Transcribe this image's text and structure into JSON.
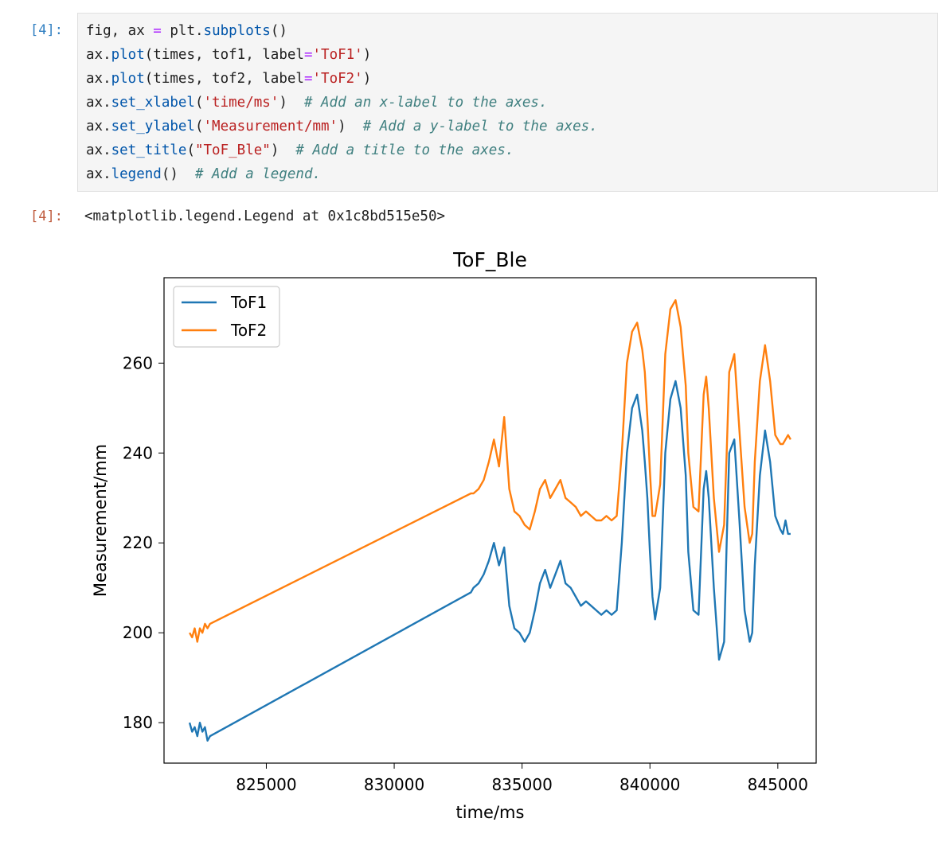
{
  "cells": {
    "input_prompt": "[4]:",
    "output_prompt": "[4]:",
    "code_lines": [
      {
        "parts": [
          [
            "kw",
            "fig, ax "
          ],
          [
            "op",
            "="
          ],
          [
            "kw",
            " plt."
          ],
          [
            "fn",
            "subplots"
          ],
          [
            "kw",
            "()"
          ]
        ]
      },
      {
        "parts": [
          [
            "kw",
            "ax."
          ],
          [
            "fn",
            "plot"
          ],
          [
            "kw",
            "(times, tof1, label"
          ],
          [
            "op",
            "="
          ],
          [
            "str",
            "'ToF1'"
          ],
          [
            "kw",
            ")"
          ]
        ]
      },
      {
        "parts": [
          [
            "kw",
            "ax."
          ],
          [
            "fn",
            "plot"
          ],
          [
            "kw",
            "(times, tof2, label"
          ],
          [
            "op",
            "="
          ],
          [
            "str",
            "'ToF2'"
          ],
          [
            "kw",
            ")"
          ]
        ]
      },
      {
        "parts": [
          [
            "kw",
            "ax."
          ],
          [
            "fn",
            "set_xlabel"
          ],
          [
            "kw",
            "("
          ],
          [
            "str",
            "'time/ms'"
          ],
          [
            "kw",
            ")  "
          ],
          [
            "cmt",
            "# Add an x-label to the axes."
          ]
        ]
      },
      {
        "parts": [
          [
            "kw",
            "ax."
          ],
          [
            "fn",
            "set_ylabel"
          ],
          [
            "kw",
            "("
          ],
          [
            "str",
            "'Measurement/mm'"
          ],
          [
            "kw",
            ")  "
          ],
          [
            "cmt",
            "# Add a y-label to the axes."
          ]
        ]
      },
      {
        "parts": [
          [
            "kw",
            "ax."
          ],
          [
            "fn",
            "set_title"
          ],
          [
            "kw",
            "("
          ],
          [
            "str",
            "\"ToF_Ble\""
          ],
          [
            "kw",
            ")  "
          ],
          [
            "cmt",
            "# Add a title to the axes."
          ]
        ]
      },
      {
        "parts": [
          [
            "kw",
            "ax."
          ],
          [
            "fn",
            "legend"
          ],
          [
            "kw",
            "()  "
          ],
          [
            "cmt",
            "# Add a legend."
          ]
        ]
      }
    ],
    "output_text": "<matplotlib.legend.Legend at 0x1c8bd515e50>"
  },
  "colors": {
    "tof1": "#1f77b4",
    "tof2": "#ff7f0e"
  },
  "chart_data": {
    "type": "line",
    "title": "ToF_Ble",
    "xlabel": "time/ms",
    "ylabel": "Measurement/mm",
    "xlim": [
      821000,
      846500
    ],
    "ylim": [
      171,
      279
    ],
    "xticks": [
      825000,
      830000,
      835000,
      840000,
      845000
    ],
    "yticks": [
      180,
      200,
      220,
      240,
      260
    ],
    "legend_position": "upper left",
    "series": [
      {
        "name": "ToF1",
        "x": [
          822000,
          822100,
          822200,
          822300,
          822400,
          822500,
          822600,
          822700,
          822800,
          833000,
          833100,
          833300,
          833500,
          833700,
          833900,
          834100,
          834300,
          834500,
          834700,
          834900,
          835100,
          835300,
          835500,
          835700,
          835900,
          836100,
          836300,
          836500,
          836700,
          836900,
          837100,
          837300,
          837500,
          837700,
          837900,
          838100,
          838300,
          838500,
          838700,
          838900,
          839100,
          839300,
          839500,
          839700,
          839800,
          839900,
          840000,
          840100,
          840200,
          840400,
          840600,
          840800,
          841000,
          841200,
          841400,
          841500,
          841700,
          841900,
          842100,
          842200,
          842300,
          842500,
          842700,
          842900,
          843000,
          843100,
          843300,
          843500,
          843700,
          843900,
          844000,
          844100,
          844300,
          844500,
          844700,
          844900,
          845100,
          845200,
          845300,
          845400,
          845500
        ],
        "y": [
          180,
          178,
          179,
          177,
          180,
          178,
          179,
          176,
          177,
          209,
          210,
          211,
          213,
          216,
          220,
          215,
          219,
          206,
          201,
          200,
          198,
          200,
          205,
          211,
          214,
          210,
          213,
          216,
          211,
          210,
          208,
          206,
          207,
          206,
          205,
          204,
          205,
          204,
          205,
          220,
          240,
          250,
          253,
          245,
          238,
          230,
          218,
          208,
          203,
          210,
          240,
          252,
          256,
          250,
          235,
          218,
          205,
          204,
          232,
          236,
          230,
          210,
          194,
          198,
          220,
          240,
          243,
          225,
          205,
          198,
          200,
          215,
          235,
          245,
          238,
          226,
          223,
          222,
          225,
          222,
          222
        ]
      },
      {
        "name": "ToF2",
        "x": [
          822000,
          822100,
          822200,
          822300,
          822400,
          822500,
          822600,
          822700,
          822800,
          833000,
          833100,
          833300,
          833500,
          833700,
          833900,
          834100,
          834300,
          834500,
          834700,
          834900,
          835100,
          835300,
          835500,
          835700,
          835900,
          836100,
          836300,
          836500,
          836700,
          836900,
          837100,
          837300,
          837500,
          837700,
          837900,
          838100,
          838300,
          838500,
          838700,
          838900,
          839100,
          839300,
          839500,
          839700,
          839800,
          839900,
          840000,
          840100,
          840200,
          840400,
          840600,
          840800,
          841000,
          841200,
          841400,
          841500,
          841700,
          841900,
          842100,
          842200,
          842300,
          842500,
          842700,
          842900,
          843000,
          843100,
          843300,
          843500,
          843700,
          843900,
          844000,
          844100,
          844300,
          844500,
          844700,
          844900,
          845100,
          845200,
          845300,
          845400,
          845500
        ],
        "y": [
          200,
          199,
          201,
          198,
          201,
          200,
          202,
          201,
          202,
          231,
          231,
          232,
          234,
          238,
          243,
          237,
          248,
          232,
          227,
          226,
          224,
          223,
          227,
          232,
          234,
          230,
          232,
          234,
          230,
          229,
          228,
          226,
          227,
          226,
          225,
          225,
          226,
          225,
          226,
          240,
          260,
          267,
          269,
          263,
          258,
          248,
          236,
          226,
          226,
          233,
          262,
          272,
          274,
          268,
          255,
          240,
          228,
          227,
          253,
          257,
          250,
          230,
          218,
          224,
          240,
          258,
          262,
          245,
          228,
          220,
          222,
          238,
          256,
          264,
          256,
          244,
          242,
          242,
          243,
          244,
          243
        ]
      }
    ]
  }
}
